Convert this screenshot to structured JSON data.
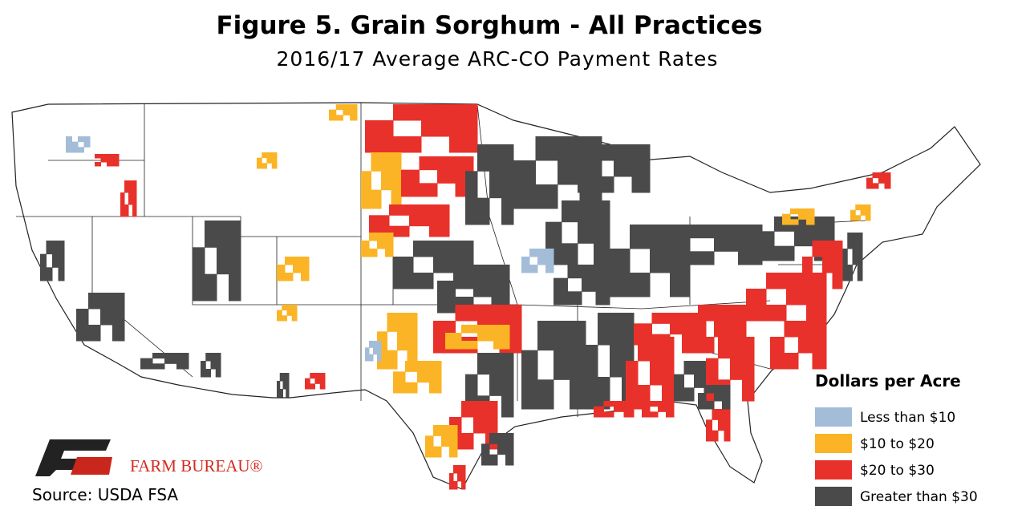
{
  "header": {
    "title": "Figure 5. Grain Sorghum - All Practices",
    "subtitle": "2016/17 Average ARC-CO Payment Rates"
  },
  "legend": {
    "title": "Dollars per Acre",
    "items": [
      {
        "label": "Less than $10",
        "color": "#a3bdd8"
      },
      {
        "label": "$10 to $20",
        "color": "#fbb425"
      },
      {
        "label": "$20 to $30",
        "color": "#e8312a"
      },
      {
        "label": "Greater than $30",
        "color": "#4a4a4a"
      }
    ]
  },
  "logo": {
    "text": "FARM BUREAU®"
  },
  "source": "Source: USDA FSA"
}
